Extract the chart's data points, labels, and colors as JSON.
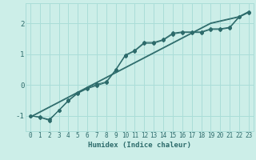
{
  "title": "",
  "xlabel": "Humidex (Indice chaleur)",
  "ylabel": "",
  "x_data": [
    0,
    1,
    2,
    3,
    4,
    5,
    6,
    7,
    8,
    9,
    10,
    11,
    12,
    13,
    14,
    15,
    16,
    17,
    18,
    19,
    20,
    21,
    22,
    23
  ],
  "line1_y": [
    -1.0,
    -1.05,
    -1.15,
    -0.82,
    -0.5,
    -0.25,
    -0.1,
    0.02,
    0.1,
    0.5,
    0.97,
    1.12,
    1.38,
    1.38,
    1.47,
    1.68,
    1.72,
    1.72,
    1.72,
    1.82,
    1.82,
    1.87,
    2.22,
    2.37
  ],
  "line2_y": [
    -1.0,
    -1.04,
    -1.12,
    -0.83,
    -0.52,
    -0.27,
    -0.12,
    -0.02,
    0.08,
    0.48,
    0.95,
    1.1,
    1.35,
    1.35,
    1.45,
    1.65,
    1.7,
    1.7,
    1.7,
    1.8,
    1.8,
    1.85,
    2.2,
    2.35
  ],
  "reg1_y": [
    -1.05,
    -0.89,
    -0.73,
    -0.57,
    -0.41,
    -0.25,
    -0.09,
    0.07,
    0.23,
    0.39,
    0.55,
    0.71,
    0.87,
    1.03,
    1.19,
    1.35,
    1.51,
    1.67,
    1.83,
    1.99,
    2.06,
    2.13,
    2.2,
    2.36
  ],
  "reg2_y": [
    -1.03,
    -0.87,
    -0.71,
    -0.55,
    -0.39,
    -0.23,
    -0.07,
    0.09,
    0.25,
    0.41,
    0.57,
    0.73,
    0.89,
    1.05,
    1.21,
    1.37,
    1.53,
    1.69,
    1.85,
    2.01,
    2.08,
    2.15,
    2.22,
    2.38
  ],
  "line_color": "#2d6b6b",
  "bg_color": "#cceee8",
  "grid_color": "#aaddd8",
  "ylim": [
    -1.5,
    2.65
  ],
  "yticks": [
    -1,
    0,
    1,
    2
  ],
  "xlim": [
    -0.5,
    23.5
  ]
}
